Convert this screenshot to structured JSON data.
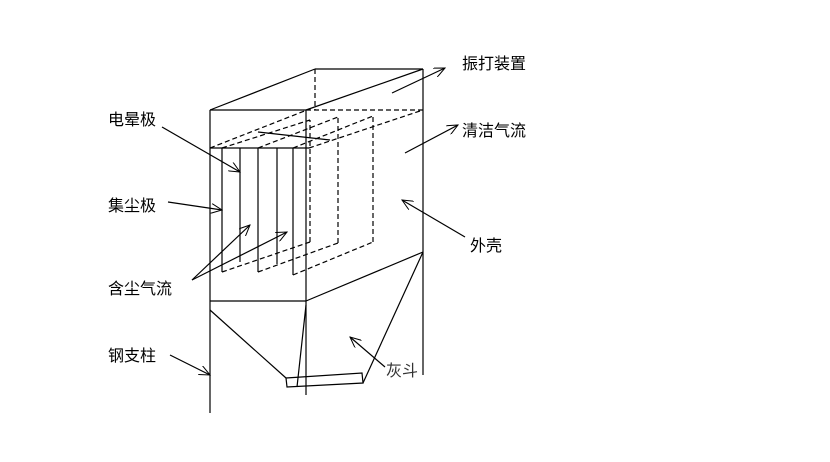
{
  "labels": {
    "rapping_device": "振打装置",
    "clean_gas": "清洁气流",
    "discharge_electrode": "电晕极",
    "collecting_electrode": "集尘极",
    "shell": "外壳",
    "dusty_gas": "含尘气流",
    "steel_column": "钢支柱",
    "ash_hopper": "灰斗"
  }
}
